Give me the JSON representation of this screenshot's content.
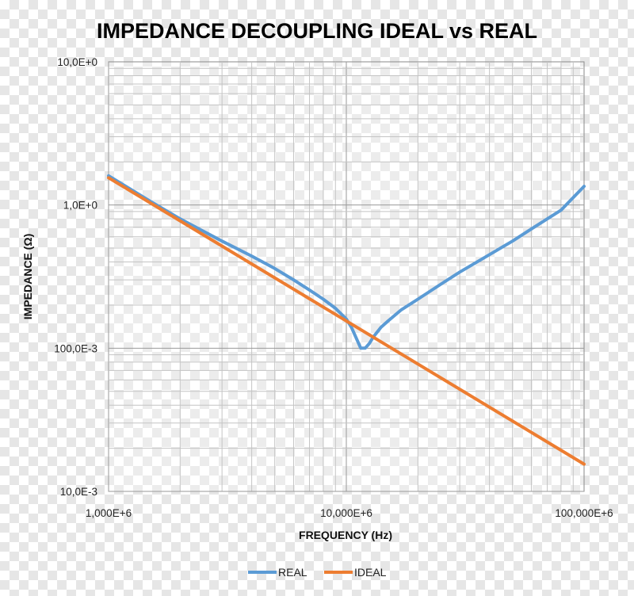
{
  "chart_data": {
    "type": "line",
    "title": "IMPEDANCE DECOUPLING IDEAL vs REAL",
    "xlabel": "FREQUENCY (Hz)",
    "ylabel": "IMPEDANCE (Ω)",
    "x_scale": "log",
    "y_scale": "log",
    "xlim": [
      1000000,
      100000000
    ],
    "ylim": [
      0.01,
      10
    ],
    "x_ticks": [
      {
        "value": 1000000,
        "label": "1,000E+6"
      },
      {
        "value": 10000000,
        "label": "10,000E+6"
      },
      {
        "value": 100000000,
        "label": "100,000E+6"
      }
    ],
    "y_ticks": [
      {
        "value": 10,
        "label": "10,0E+0"
      },
      {
        "value": 1,
        "label": "1,0E+0"
      },
      {
        "value": 0.1,
        "label": "100,0E-3"
      },
      {
        "value": 0.01,
        "label": "10,0E-3"
      }
    ],
    "grid": true,
    "legend_position": "bottom",
    "series": [
      {
        "name": "REAL",
        "color": "#5b9bd5",
        "x": [
          1000000,
          1500000,
          2000000,
          3000000,
          4000000,
          5000000,
          6000000,
          7000000,
          8000000,
          9000000,
          10000000,
          10500000,
          11000000,
          11500000,
          12000000,
          12500000,
          13000000,
          14000000,
          15000000,
          17000000,
          20000000,
          25000000,
          30000000,
          40000000,
          50000000,
          60000000,
          70000000,
          80000000,
          100000000
        ],
        "y": [
          1.6,
          1.06,
          0.8,
          0.56,
          0.44,
          0.36,
          0.3,
          0.255,
          0.22,
          0.19,
          0.16,
          0.14,
          0.118,
          0.1,
          0.1,
          0.108,
          0.12,
          0.14,
          0.155,
          0.185,
          0.22,
          0.28,
          0.34,
          0.45,
          0.56,
          0.68,
          0.8,
          0.92,
          1.35
        ]
      },
      {
        "name": "IDEAL",
        "color": "#ed7d31",
        "x": [
          1000000,
          100000000
        ],
        "y": [
          1.55,
          0.0155
        ]
      }
    ]
  }
}
